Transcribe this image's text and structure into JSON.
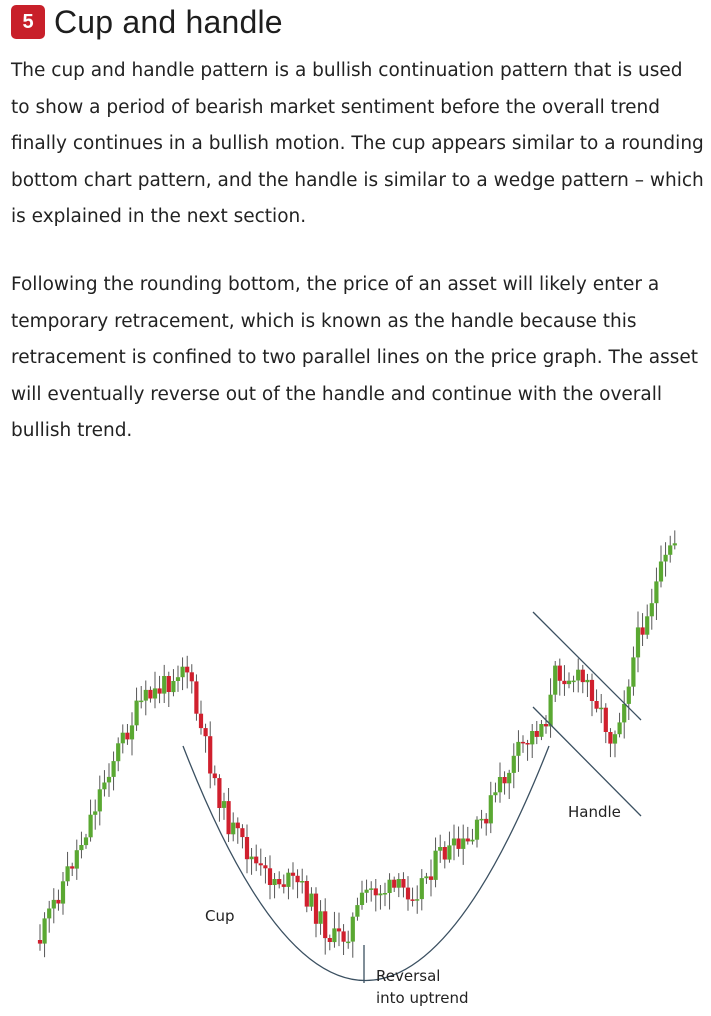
{
  "section": {
    "number": "5",
    "title": "Cup and handle",
    "paragraphs": [
      "The cup and handle pattern is a bullish continuation pattern that is used to show a period of bearish market sentiment before the overall trend finally continues in a bullish motion. The cup appears similar to a rounding bottom chart pattern, and the handle is similar to a wedge pattern – which is explained in the next section.",
      "Following the rounding bottom, the price of an asset will likely enter a temporary retracement, which is known as the handle because this retracement is confined to two parallel lines on the price graph. The asset will eventually reverse out of the handle and continue with the overall bullish trend."
    ]
  },
  "chart": {
    "annotations": {
      "cup": "Cup",
      "handle": "Handle",
      "reversal_line1": "Reversal",
      "reversal_line2": "into uptrend"
    },
    "colors": {
      "bull": "#5aa832",
      "bear": "#d0202e",
      "line": "#3b5061",
      "wick": "#444444"
    }
  }
}
